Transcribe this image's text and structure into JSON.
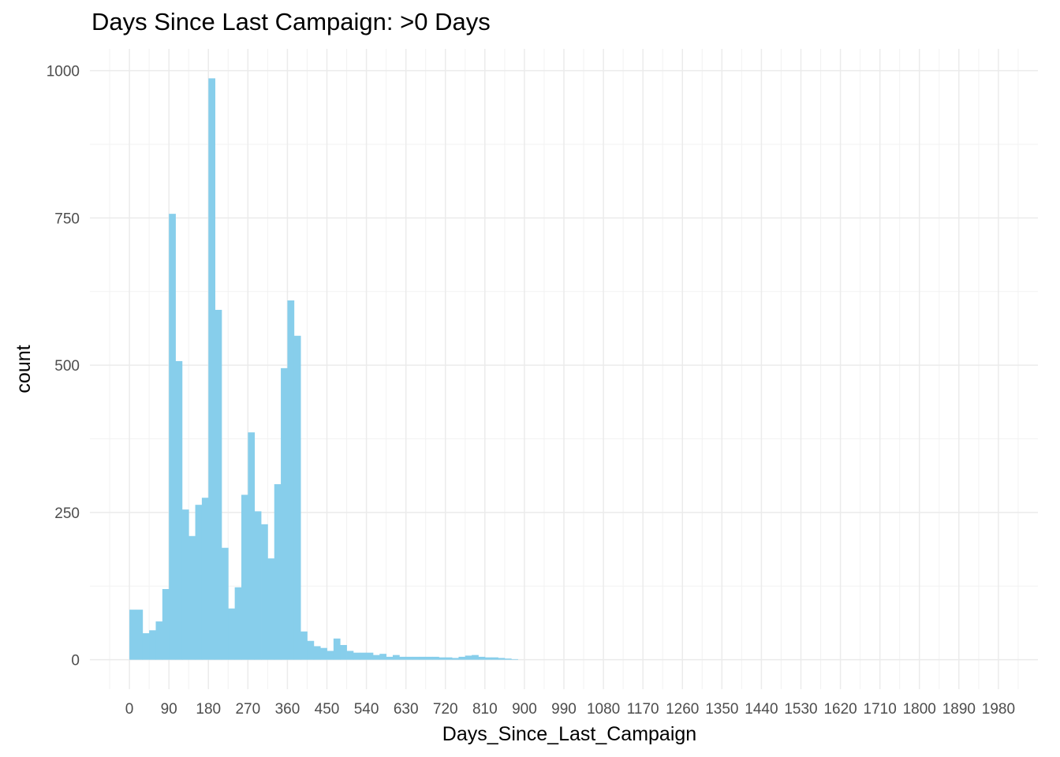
{
  "chart_data": {
    "type": "bar",
    "title": "Days Since Last Campaign: >0 Days",
    "xlabel": "Days_Since_Last_Campaign",
    "ylabel": "count",
    "bin_width": 15,
    "x_start": 0,
    "xlim": [
      -90,
      2070
    ],
    "ylim": [
      -50,
      1037
    ],
    "x_ticks": [
      0,
      90,
      180,
      270,
      360,
      450,
      540,
      630,
      720,
      810,
      900,
      990,
      1080,
      1170,
      1260,
      1350,
      1440,
      1530,
      1620,
      1710,
      1800,
      1890,
      1980
    ],
    "y_ticks": [
      0,
      250,
      500,
      750,
      1000
    ],
    "grid": true,
    "legend": "none",
    "bar_color": "#87CEEB",
    "values": [
      85,
      85,
      45,
      50,
      65,
      120,
      757,
      507,
      255,
      210,
      263,
      275,
      987,
      594,
      190,
      87,
      123,
      280,
      386,
      252,
      230,
      172,
      298,
      495,
      610,
      550,
      48,
      32,
      23,
      20,
      15,
      36,
      25,
      15,
      12,
      12,
      12,
      8,
      10,
      5,
      8,
      5,
      5,
      5,
      5,
      5,
      5,
      4,
      4,
      3,
      5,
      7,
      8,
      5,
      4,
      4,
      3,
      2,
      1,
      0
    ]
  }
}
